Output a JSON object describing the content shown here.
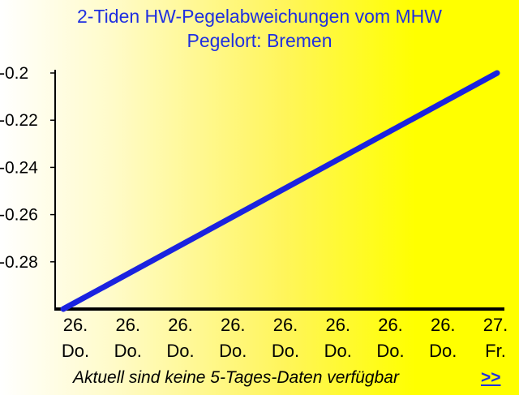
{
  "chart_data": {
    "type": "line",
    "title": "2-Tiden HW-Pegelabweichungen vom MHW",
    "subtitle": "Pegelort: Bremen",
    "x": [
      0,
      1
    ],
    "categories": [
      [
        "26.",
        "Do."
      ],
      [
        "26.",
        "Do."
      ],
      [
        "26.",
        "Do."
      ],
      [
        "26.",
        "Do."
      ],
      [
        "26.",
        "Do."
      ],
      [
        "26.",
        "Do."
      ],
      [
        "26.",
        "Do."
      ],
      [
        "26.",
        "Do."
      ],
      [
        "27.",
        "Fr."
      ]
    ],
    "series": [
      {
        "values": [
          -0.3,
          -0.2
        ]
      }
    ],
    "yticks": [
      "-0.2",
      "-0.22",
      "-0.24",
      "-0.26",
      "-0.28"
    ],
    "ytick_values": [
      -0.2,
      -0.22,
      -0.24,
      -0.26,
      -0.28
    ],
    "ylim": [
      -0.3,
      -0.2
    ],
    "grid": false,
    "line_color": "#1a22e0"
  },
  "footer": {
    "message": "Aktuell sind keine 5-Tages-Daten verfügbar",
    "link_label": ">>"
  }
}
